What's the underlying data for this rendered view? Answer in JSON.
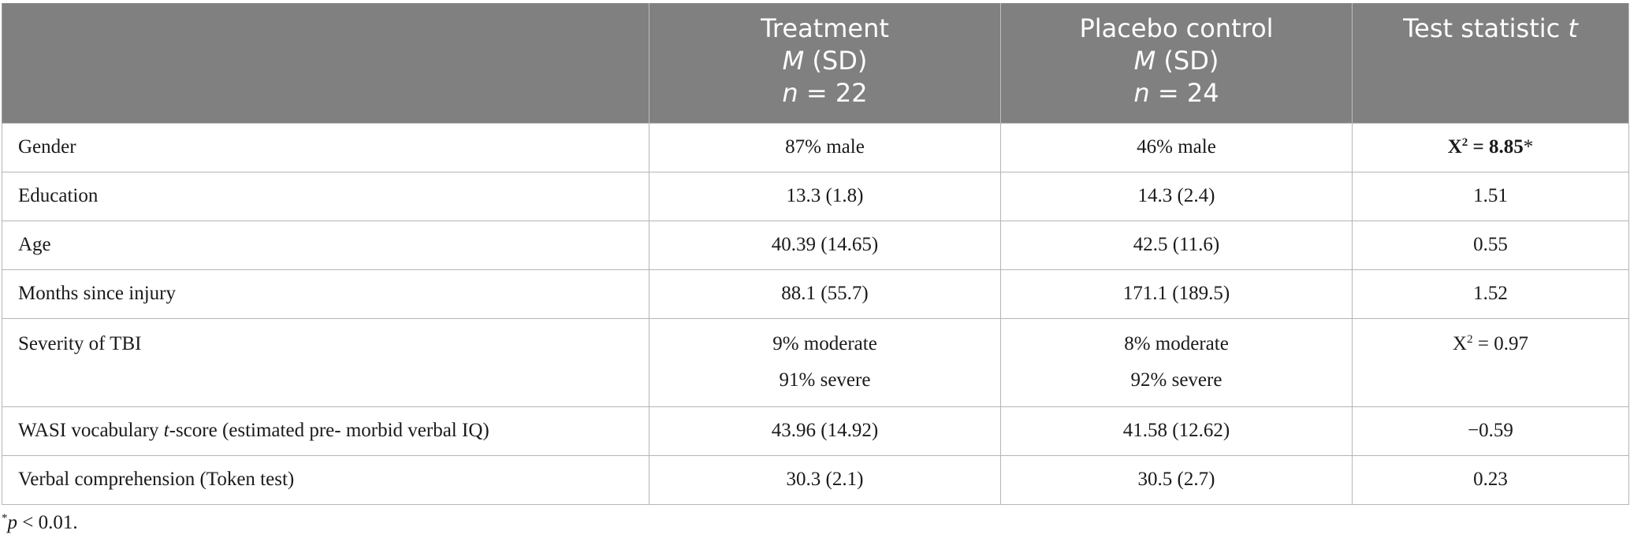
{
  "header": {
    "col1": "",
    "treatment": {
      "title": "Treatment",
      "m_label": "M",
      "sd_label": " (SD)",
      "n_label": "n",
      "n_value": " = 22"
    },
    "placebo": {
      "title": "Placebo control",
      "m_label": "M",
      "sd_label": " (SD)",
      "n_label": "n",
      "n_value": " = 24"
    },
    "test": {
      "title_prefix": "Test statistic ",
      "title_var": "t"
    }
  },
  "rows": [
    {
      "label": "Gender",
      "treatment": "87% male",
      "placebo": "46% male",
      "stat_symbol": "X",
      "stat_sup": "2",
      "stat_value": " = 8.85",
      "stat_mark": "*"
    },
    {
      "label": "Education",
      "treatment": "13.3 (1.8)",
      "placebo": "14.3 (2.4)",
      "stat": "1.51"
    },
    {
      "label": "Age",
      "treatment": "40.39 (14.65)",
      "placebo": "42.5 (11.6)",
      "stat": "0.55"
    },
    {
      "label": "Months since injury",
      "treatment": "88.1 (55.7)",
      "placebo": "171.1 (189.5)",
      "stat": "1.52"
    },
    {
      "label": "Severity of TBI",
      "treatment_1": "9% moderate",
      "treatment_2": "91% severe",
      "placebo_1": "8% moderate",
      "placebo_2": "92% severe",
      "stat_symbol": "X",
      "stat_sup": "2",
      "stat_value": " = 0.97"
    },
    {
      "label_prefix": "WASI vocabulary ",
      "label_var": "t",
      "label_suffix": "-score (estimated pre- morbid verbal IQ)",
      "treatment": "43.96 (14.92)",
      "placebo": "41.58 (12.62)",
      "stat": "−0.59"
    },
    {
      "label": "Verbal comprehension (Token test)",
      "treatment": "30.3 (2.1)",
      "placebo": "30.5 (2.7)",
      "stat": "0.23"
    }
  ],
  "footnote": {
    "mark": "*",
    "var": "p",
    "text": " < 0.01."
  }
}
